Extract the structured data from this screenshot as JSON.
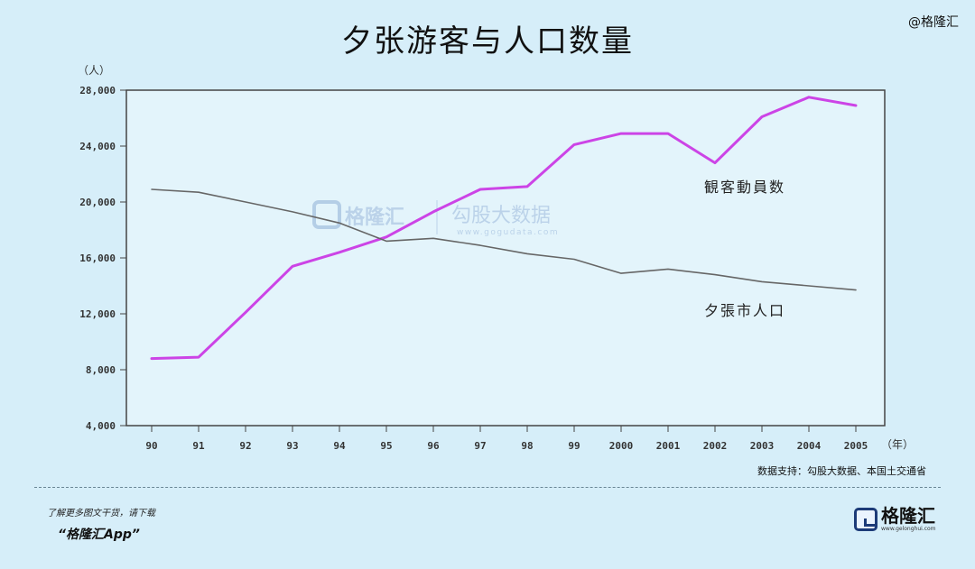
{
  "header": {
    "title": "夕张游客与人口数量",
    "brand": "@格隆汇"
  },
  "chart_data": {
    "type": "line",
    "title": "夕张游客与人口数量",
    "ylabel": "（人）",
    "xlabel": "（年）",
    "categories": [
      "90",
      "91",
      "92",
      "93",
      "94",
      "95",
      "96",
      "97",
      "98",
      "99",
      "2000",
      "2001",
      "2002",
      "2003",
      "2004",
      "2005"
    ],
    "ylim": [
      4000,
      28000
    ],
    "yticks": [
      4000,
      8000,
      12000,
      16000,
      20000,
      24000,
      28000
    ],
    "ytick_labels": [
      "4,000",
      "8,000",
      "12,000",
      "16,000",
      "20,000",
      "24,000",
      "28,000"
    ],
    "series": [
      {
        "name": "観客動員数",
        "color": "#cc44e6",
        "values": [
          8800,
          8900,
          12100,
          15400,
          16400,
          17500,
          19300,
          20900,
          21100,
          24100,
          24900,
          24900,
          22800,
          26100,
          27500,
          26900
        ]
      },
      {
        "name": "夕張市人口",
        "color": "#666666",
        "values": [
          20900,
          20700,
          20000,
          19300,
          18500,
          17200,
          17400,
          16900,
          16300,
          15900,
          14900,
          15200,
          14800,
          14300,
          14000,
          13700
        ]
      }
    ],
    "grid": false
  },
  "watermark": {
    "name": "格隆汇",
    "sub": "勾股大数据",
    "url": "www.gogudata.com"
  },
  "footer": {
    "source": "数据支持：勾股大数据、本国土交通省",
    "cta": "了解更多图文干货，请下载",
    "app": "“格隆汇App”",
    "logo_name": "格隆汇",
    "logo_url": "www.gelonghui.com"
  }
}
